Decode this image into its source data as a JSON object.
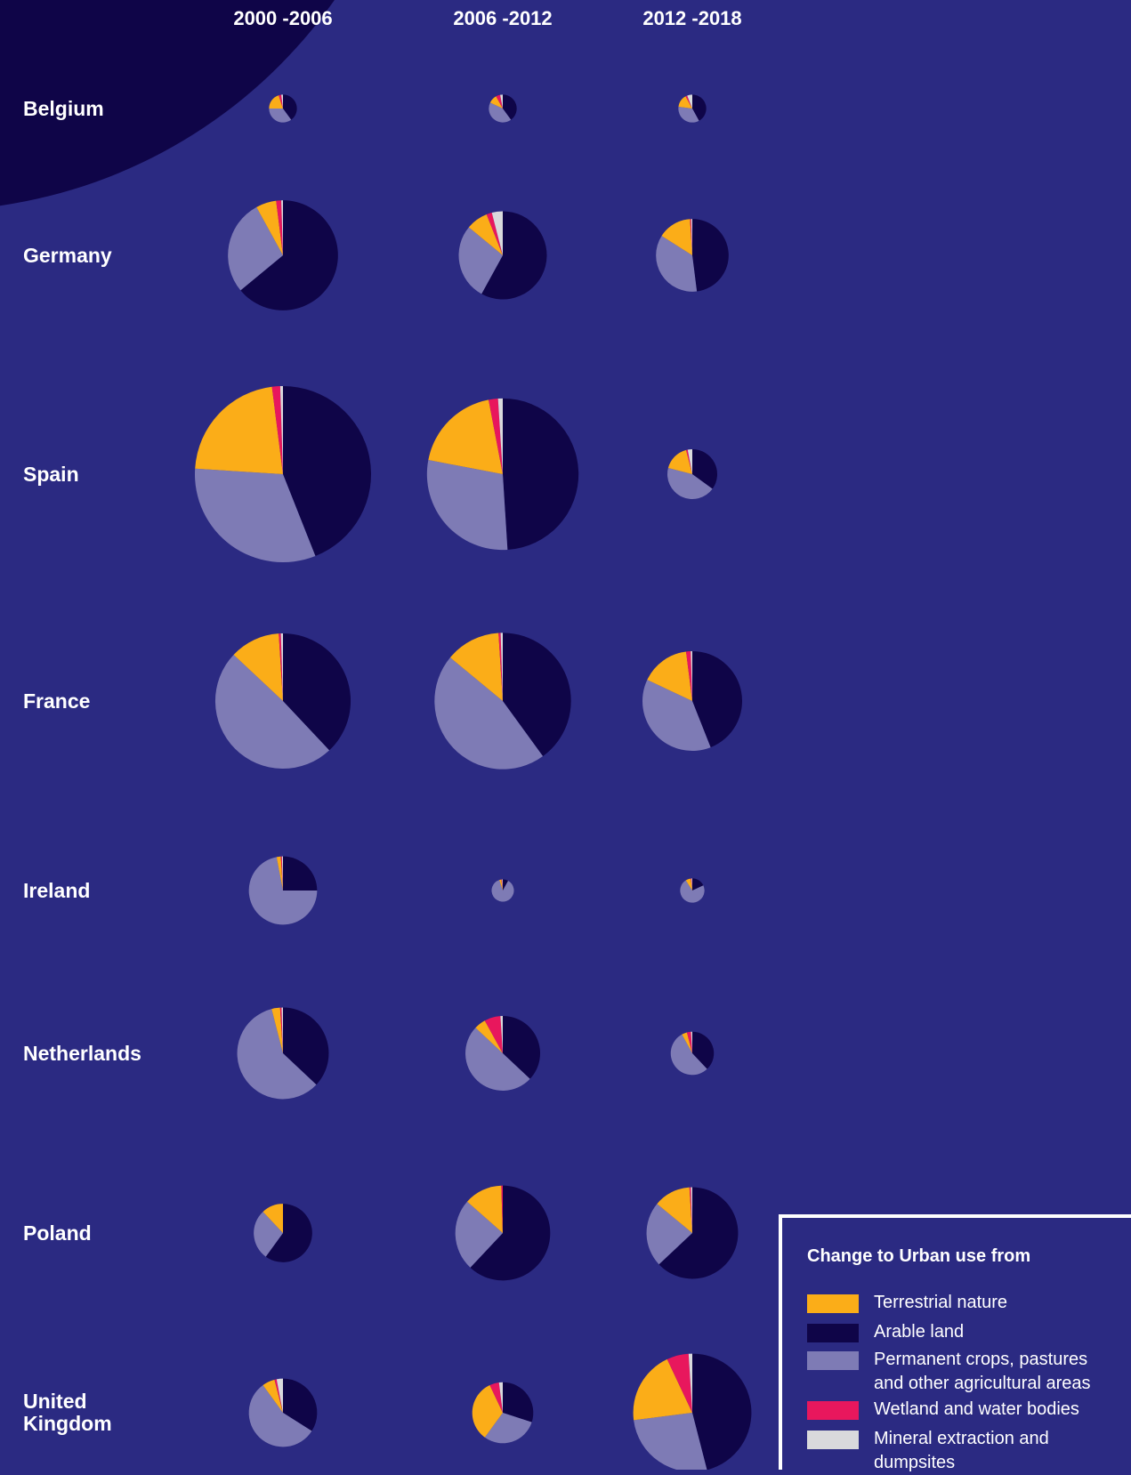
{
  "chart_data": {
    "type": "pie",
    "periods": [
      "2000 -2006",
      "2006 -2012",
      "2012 -2018"
    ],
    "countries": [
      "Belgium",
      "Germany",
      "Spain",
      "France",
      "Ireland",
      "Netherlands",
      "Poland",
      "United Kingdom"
    ],
    "legend_title": "Change to Urban use from",
    "categories": [
      "Terrestrial nature",
      "Arable land",
      "Permanent crops, pastures and other agricultural areas",
      "Wetland and water bodies",
      "Mineral extraction and dumpsites"
    ],
    "colors": [
      "#fbad18",
      "#0f0548",
      "#7e7bb5",
      "#e8175d",
      "#d9d9dc"
    ],
    "draw_order": [
      1,
      2,
      0,
      3,
      4
    ],
    "values": [
      [
        [
          20,
          40,
          35,
          3,
          2
        ],
        [
          10,
          40,
          42,
          5,
          3
        ],
        [
          15,
          42,
          35,
          2,
          6
        ]
      ],
      [
        [
          6,
          64,
          28,
          1.5,
          0.5
        ],
        [
          8,
          58,
          28,
          2,
          4
        ],
        [
          15,
          48,
          36,
          0.5,
          0.5
        ]
      ],
      [
        [
          22,
          44,
          32,
          1.5,
          0.5
        ],
        [
          19,
          49,
          29,
          2,
          1
        ],
        [
          17,
          35,
          44,
          1,
          3
        ]
      ],
      [
        [
          12,
          38,
          49,
          0.5,
          0.5
        ],
        [
          13,
          40,
          46,
          0.5,
          0.5
        ],
        [
          16,
          44,
          38,
          1.5,
          0.5
        ]
      ],
      [
        [
          2,
          25,
          72,
          0.5,
          0.5
        ],
        [
          3,
          8,
          87,
          1,
          1
        ],
        [
          7,
          18,
          73,
          1,
          1
        ]
      ],
      [
        [
          3,
          37,
          59,
          0.5,
          0.5
        ],
        [
          5,
          37,
          50,
          7,
          1
        ],
        [
          4,
          38,
          54,
          3,
          1
        ]
      ],
      [
        [
          12,
          60,
          28,
          0,
          0
        ],
        [
          13,
          62,
          24.5,
          0.5,
          0
        ],
        [
          13,
          63,
          23,
          0.5,
          0.5
        ]
      ],
      [
        [
          6,
          34,
          56,
          1,
          3
        ],
        [
          33,
          30,
          30,
          5,
          2
        ],
        [
          20,
          46,
          27,
          6,
          1
        ]
      ]
    ],
    "totals": [
      [
        2.5,
        2.5,
        2.5
      ],
      [
        39,
        25,
        17
      ],
      [
        100,
        74,
        8
      ],
      [
        59,
        60,
        32
      ],
      [
        15,
        1.6,
        1.9
      ],
      [
        27,
        18,
        6
      ],
      [
        11,
        29,
        27
      ],
      [
        15,
        12,
        45
      ]
    ]
  }
}
